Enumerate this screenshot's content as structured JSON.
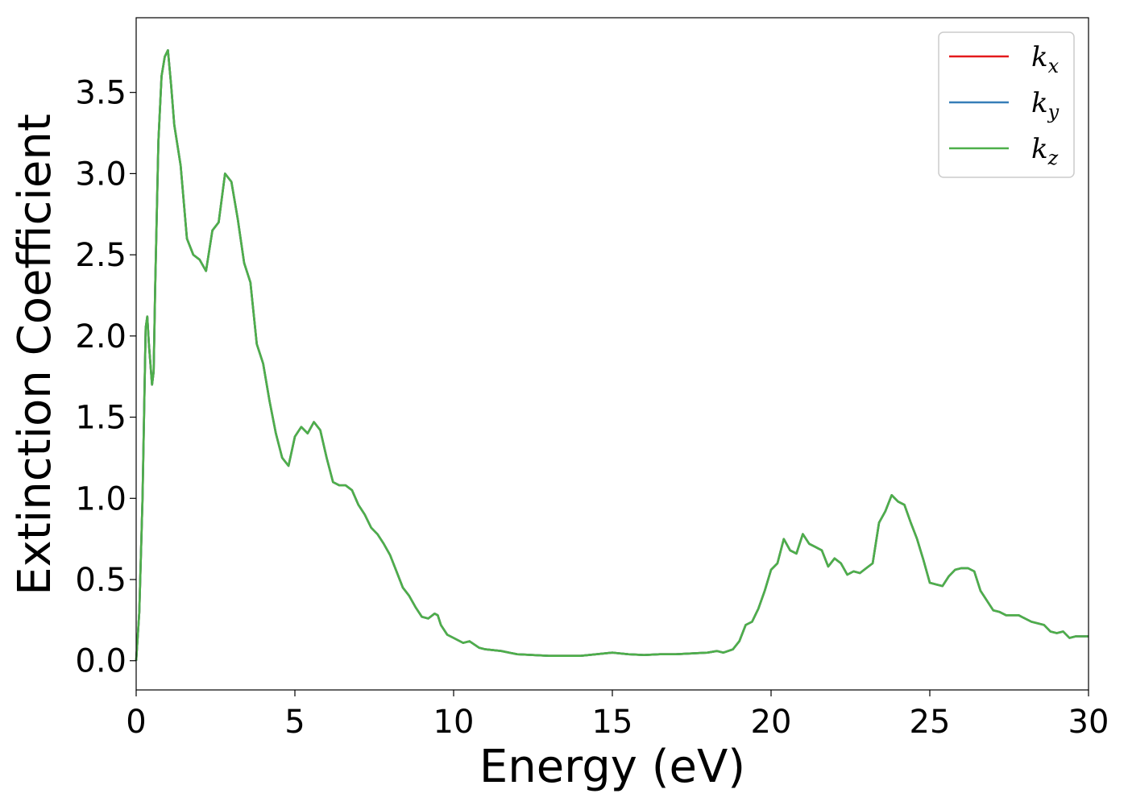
{
  "chart_data": {
    "type": "line",
    "title": "",
    "xlabel": "Energy (eV)",
    "ylabel": "Extinction Coefficient",
    "xlim": [
      0,
      30
    ],
    "ylim": [
      -0.18,
      3.96
    ],
    "xticks": [
      0,
      5,
      10,
      15,
      20,
      25,
      30
    ],
    "xtick_labels": [
      "0",
      "5",
      "10",
      "15",
      "20",
      "25",
      "30"
    ],
    "yticks": [
      0.0,
      0.5,
      1.0,
      1.5,
      2.0,
      2.5,
      3.0,
      3.5
    ],
    "ytick_labels": [
      "0.0",
      "0.5",
      "1.0",
      "1.5",
      "2.0",
      "2.5",
      "3.0",
      "3.5"
    ],
    "grid": false,
    "legend_position": "top-right",
    "series": [
      {
        "name": "k",
        "subscript": "x",
        "color": "#e41a1c"
      },
      {
        "name": "k",
        "subscript": "y",
        "color": "#377eb8"
      },
      {
        "name": "k",
        "subscript": "z",
        "color": "#4daf4a"
      }
    ],
    "x": [
      0.0,
      0.1,
      0.2,
      0.3,
      0.35,
      0.4,
      0.5,
      0.55,
      0.6,
      0.7,
      0.8,
      0.9,
      1.0,
      1.1,
      1.2,
      1.4,
      1.6,
      1.8,
      2.0,
      2.2,
      2.4,
      2.6,
      2.8,
      3.0,
      3.2,
      3.4,
      3.6,
      3.8,
      4.0,
      4.2,
      4.4,
      4.6,
      4.8,
      5.0,
      5.2,
      5.4,
      5.6,
      5.8,
      6.0,
      6.2,
      6.4,
      6.6,
      6.8,
      7.0,
      7.2,
      7.4,
      7.6,
      7.8,
      8.0,
      8.2,
      8.4,
      8.6,
      8.8,
      9.0,
      9.2,
      9.4,
      9.5,
      9.6,
      9.8,
      10.0,
      10.3,
      10.5,
      10.8,
      11.0,
      11.5,
      12.0,
      12.5,
      13.0,
      13.5,
      14.0,
      14.5,
      15.0,
      15.5,
      16.0,
      16.5,
      17.0,
      17.5,
      18.0,
      18.3,
      18.5,
      18.8,
      19.0,
      19.2,
      19.4,
      19.6,
      19.8,
      20.0,
      20.2,
      20.4,
      20.6,
      20.8,
      21.0,
      21.2,
      21.4,
      21.6,
      21.8,
      22.0,
      22.2,
      22.4,
      22.6,
      22.8,
      23.0,
      23.2,
      23.4,
      23.6,
      23.8,
      24.0,
      24.2,
      24.4,
      24.6,
      24.8,
      25.0,
      25.2,
      25.4,
      25.6,
      25.8,
      26.0,
      26.2,
      26.4,
      26.6,
      26.8,
      27.0,
      27.2,
      27.4,
      27.6,
      27.8,
      28.0,
      28.2,
      28.4,
      28.6,
      28.8,
      29.0,
      29.2,
      29.4,
      29.6,
      29.8,
      30.0
    ],
    "y": [
      0.0,
      0.3,
      1.0,
      2.05,
      2.12,
      1.95,
      1.7,
      1.78,
      2.3,
      3.2,
      3.6,
      3.72,
      3.76,
      3.55,
      3.3,
      3.05,
      2.6,
      2.5,
      2.47,
      2.4,
      2.65,
      2.7,
      3.0,
      2.95,
      2.72,
      2.45,
      2.33,
      1.95,
      1.83,
      1.6,
      1.4,
      1.25,
      1.2,
      1.38,
      1.44,
      1.4,
      1.47,
      1.42,
      1.25,
      1.1,
      1.08,
      1.08,
      1.05,
      0.96,
      0.9,
      0.82,
      0.78,
      0.72,
      0.65,
      0.55,
      0.45,
      0.4,
      0.33,
      0.27,
      0.26,
      0.29,
      0.28,
      0.22,
      0.16,
      0.14,
      0.11,
      0.12,
      0.08,
      0.07,
      0.06,
      0.04,
      0.035,
      0.03,
      0.03,
      0.03,
      0.04,
      0.05,
      0.04,
      0.035,
      0.04,
      0.04,
      0.045,
      0.05,
      0.06,
      0.05,
      0.07,
      0.12,
      0.22,
      0.24,
      0.32,
      0.43,
      0.56,
      0.6,
      0.75,
      0.68,
      0.66,
      0.78,
      0.72,
      0.7,
      0.68,
      0.58,
      0.63,
      0.6,
      0.53,
      0.55,
      0.54,
      0.57,
      0.6,
      0.85,
      0.92,
      1.02,
      0.98,
      0.96,
      0.85,
      0.75,
      0.62,
      0.48,
      0.47,
      0.46,
      0.52,
      0.56,
      0.57,
      0.57,
      0.55,
      0.43,
      0.37,
      0.31,
      0.3,
      0.28,
      0.28,
      0.28,
      0.26,
      0.24,
      0.23,
      0.22,
      0.18,
      0.17,
      0.18,
      0.14,
      0.15,
      0.15,
      0.15
    ]
  }
}
